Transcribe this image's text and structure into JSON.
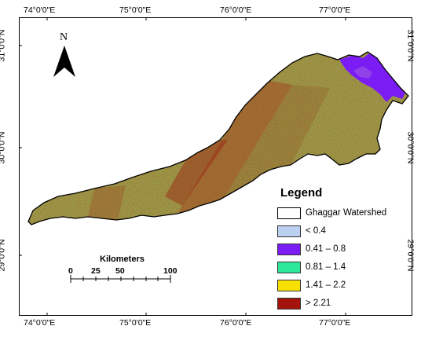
{
  "map": {
    "lon_ticks": [
      "74°0'0\"E",
      "75°0'0\"E",
      "76°0'0\"E",
      "77°0'0\"E"
    ],
    "lat_ticks": [
      "31°0'0\"N",
      "30°0'0\"N",
      "29°0'0\"N"
    ],
    "north_label": "N"
  },
  "legend": {
    "title": "Legend",
    "items": [
      {
        "label": "Ghaggar Watershed",
        "color": "#ffffff"
      },
      {
        "label": "< 0.4",
        "color": "#bcd0f2"
      },
      {
        "label": "0.41 – 0.8",
        "color": "#7b1cf5"
      },
      {
        "label": "0.81 – 1.4",
        "color": "#2ee89a"
      },
      {
        "label": "1.41 – 2.2",
        "color": "#f7e000"
      },
      {
        "label": "> 2.21",
        "color": "#a4130c"
      }
    ]
  },
  "scale_bar": {
    "title": "Kilometers",
    "marks": [
      "0",
      "25",
      "50",
      "100"
    ]
  },
  "colors": {
    "dominant_fill": "#8e8e3a",
    "dark_band": "#a03a1c",
    "purple_region": "#7b1cf5"
  }
}
